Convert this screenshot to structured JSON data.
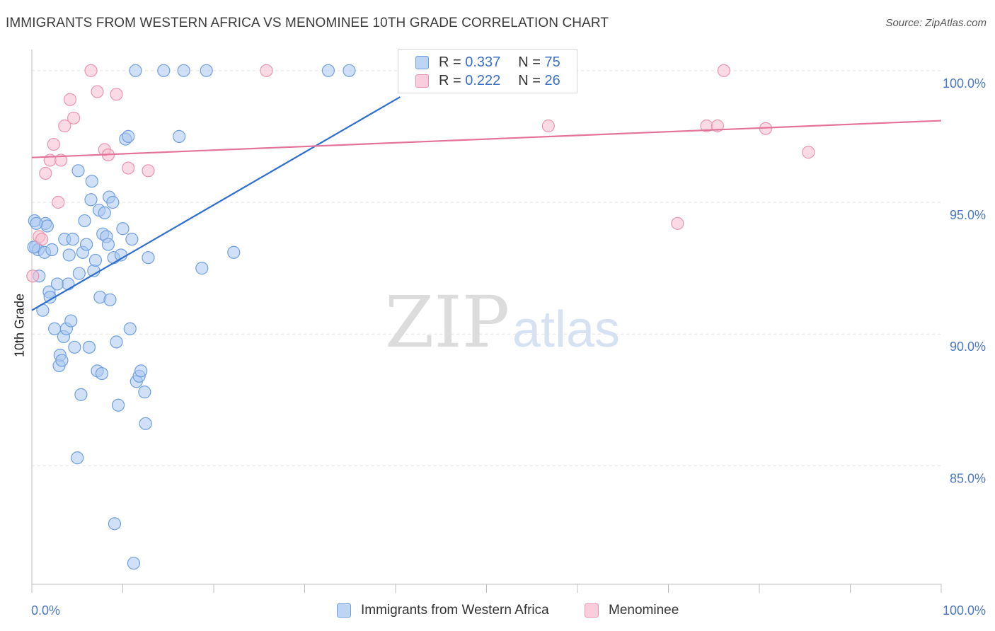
{
  "chart_data": {
    "type": "scatter",
    "title": "IMMIGRANTS FROM WESTERN AFRICA VS MENOMINEE 10TH GRADE CORRELATION CHART",
    "source": "Source: ZipAtlas.com",
    "xlabel": "",
    "ylabel": "10th Grade",
    "xlim": [
      0,
      100
    ],
    "ylim": [
      80.5,
      100.8
    ],
    "x_tick_labels": [
      "0.0%",
      "100.0%"
    ],
    "y_ticks": [
      {
        "value": 100,
        "label": "100.0%"
      },
      {
        "value": 95,
        "label": "95.0%"
      },
      {
        "value": 90,
        "label": "90.0%"
      },
      {
        "value": 85,
        "label": "85.0%"
      }
    ],
    "watermark": {
      "part1": "ZIP",
      "part2": "atlas"
    },
    "legend_stats": [
      {
        "r_label": "R = ",
        "r_value": "0.337",
        "n_label": "N = ",
        "n_value": "75"
      },
      {
        "r_label": "R = ",
        "r_value": "0.222",
        "n_label": "N = ",
        "n_value": "26"
      }
    ],
    "series": [
      {
        "name": "Immigrants from Western Africa",
        "color": "#6f9fe0",
        "fill": "#a9c7f0",
        "line_color": "#2d6fd0",
        "trend": {
          "x": [
            0,
            40.5
          ],
          "y": [
            90.9,
            99.0
          ]
        },
        "points": [
          [
            0.3,
            94.3
          ],
          [
            0.4,
            93.3
          ],
          [
            0.7,
            93.2
          ],
          [
            0.8,
            92.2
          ],
          [
            1.2,
            90.9
          ],
          [
            1.4,
            93.1
          ],
          [
            1.5,
            94.2
          ],
          [
            1.7,
            94.1
          ],
          [
            1.9,
            91.6
          ],
          [
            2.0,
            91.4
          ],
          [
            2.2,
            93.2
          ],
          [
            2.5,
            90.2
          ],
          [
            2.8,
            91.9
          ],
          [
            3.0,
            88.8
          ],
          [
            3.1,
            89.2
          ],
          [
            3.3,
            89.0
          ],
          [
            3.5,
            89.9
          ],
          [
            3.6,
            93.6
          ],
          [
            3.8,
            90.2
          ],
          [
            4.0,
            91.9
          ],
          [
            4.1,
            93.0
          ],
          [
            4.3,
            90.5
          ],
          [
            4.5,
            93.6
          ],
          [
            4.7,
            89.5
          ],
          [
            5.0,
            85.3
          ],
          [
            5.1,
            96.2
          ],
          [
            5.2,
            92.3
          ],
          [
            5.4,
            87.7
          ],
          [
            5.6,
            93.1
          ],
          [
            5.8,
            94.3
          ],
          [
            6.0,
            93.4
          ],
          [
            6.3,
            89.5
          ],
          [
            6.5,
            95.1
          ],
          [
            6.6,
            95.8
          ],
          [
            6.8,
            92.4
          ],
          [
            7.0,
            92.8
          ],
          [
            7.2,
            88.6
          ],
          [
            7.4,
            94.7
          ],
          [
            7.5,
            91.4
          ],
          [
            7.7,
            88.5
          ],
          [
            7.8,
            93.8
          ],
          [
            8.0,
            94.6
          ],
          [
            8.2,
            93.7
          ],
          [
            8.4,
            93.4
          ],
          [
            8.5,
            95.2
          ],
          [
            8.6,
            91.3
          ],
          [
            8.9,
            95.0
          ],
          [
            9.0,
            92.9
          ],
          [
            9.1,
            82.8
          ],
          [
            9.3,
            89.7
          ],
          [
            9.5,
            87.3
          ],
          [
            9.8,
            93.0
          ],
          [
            10.0,
            94.0
          ],
          [
            10.3,
            97.4
          ],
          [
            10.6,
            97.5
          ],
          [
            10.8,
            90.2
          ],
          [
            11.0,
            93.6
          ],
          [
            11.2,
            81.3
          ],
          [
            11.4,
            100.0
          ],
          [
            11.5,
            88.2
          ],
          [
            11.8,
            88.4
          ],
          [
            12.0,
            88.6
          ],
          [
            12.4,
            87.8
          ],
          [
            12.5,
            86.6
          ],
          [
            12.8,
            92.9
          ],
          [
            14.5,
            100.0
          ],
          [
            16.2,
            97.5
          ],
          [
            16.7,
            100.0
          ],
          [
            18.7,
            92.5
          ],
          [
            19.2,
            100.0
          ],
          [
            22.2,
            93.1
          ],
          [
            32.6,
            100.0
          ],
          [
            34.9,
            100.0
          ],
          [
            0.2,
            93.3
          ],
          [
            0.5,
            94.2
          ]
        ]
      },
      {
        "name": "Menominee",
        "color": "#ec93ad",
        "fill": "#f5bdd0",
        "line_color": "#e3739a",
        "trend": {
          "x": [
            0,
            100
          ],
          "y": [
            96.7,
            98.1
          ]
        },
        "points": [
          [
            0.1,
            92.2
          ],
          [
            0.8,
            93.7
          ],
          [
            1.1,
            93.6
          ],
          [
            1.5,
            96.1
          ],
          [
            2.0,
            96.6
          ],
          [
            2.4,
            97.2
          ],
          [
            2.9,
            95.0
          ],
          [
            3.2,
            96.6
          ],
          [
            3.6,
            97.9
          ],
          [
            4.2,
            98.9
          ],
          [
            4.6,
            98.2
          ],
          [
            6.5,
            100.0
          ],
          [
            7.2,
            99.2
          ],
          [
            8.0,
            97.0
          ],
          [
            8.4,
            96.8
          ],
          [
            9.3,
            99.1
          ],
          [
            10.6,
            96.3
          ],
          [
            12.8,
            96.2
          ],
          [
            25.8,
            100.0
          ],
          [
            56.8,
            97.9
          ],
          [
            71.0,
            94.2
          ],
          [
            74.2,
            97.9
          ],
          [
            75.4,
            97.9
          ],
          [
            76.1,
            100.0
          ],
          [
            80.7,
            97.8
          ],
          [
            85.4,
            96.9
          ]
        ]
      }
    ]
  }
}
